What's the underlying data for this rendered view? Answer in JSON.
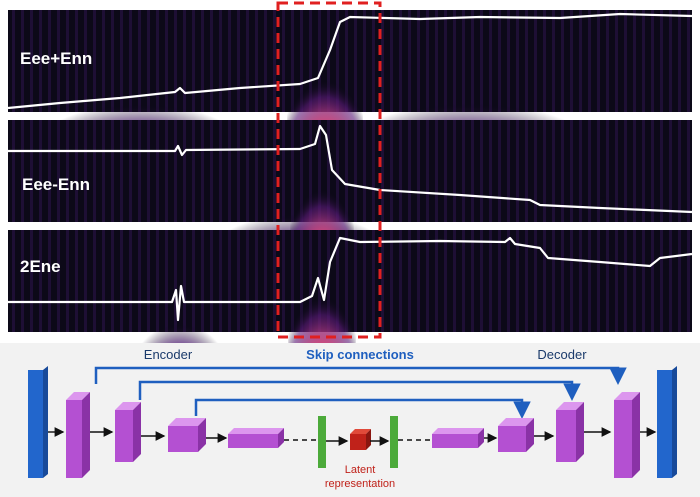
{
  "panels": [
    {
      "label": "Eee+Enn"
    },
    {
      "label": "Eee-Enn"
    },
    {
      "label": "2Ene"
    }
  ],
  "diagram": {
    "encoder": "Encoder",
    "skip": "Skip connections",
    "decoder": "Decoder",
    "latent": [
      "Latent",
      "representation"
    ]
  }
}
